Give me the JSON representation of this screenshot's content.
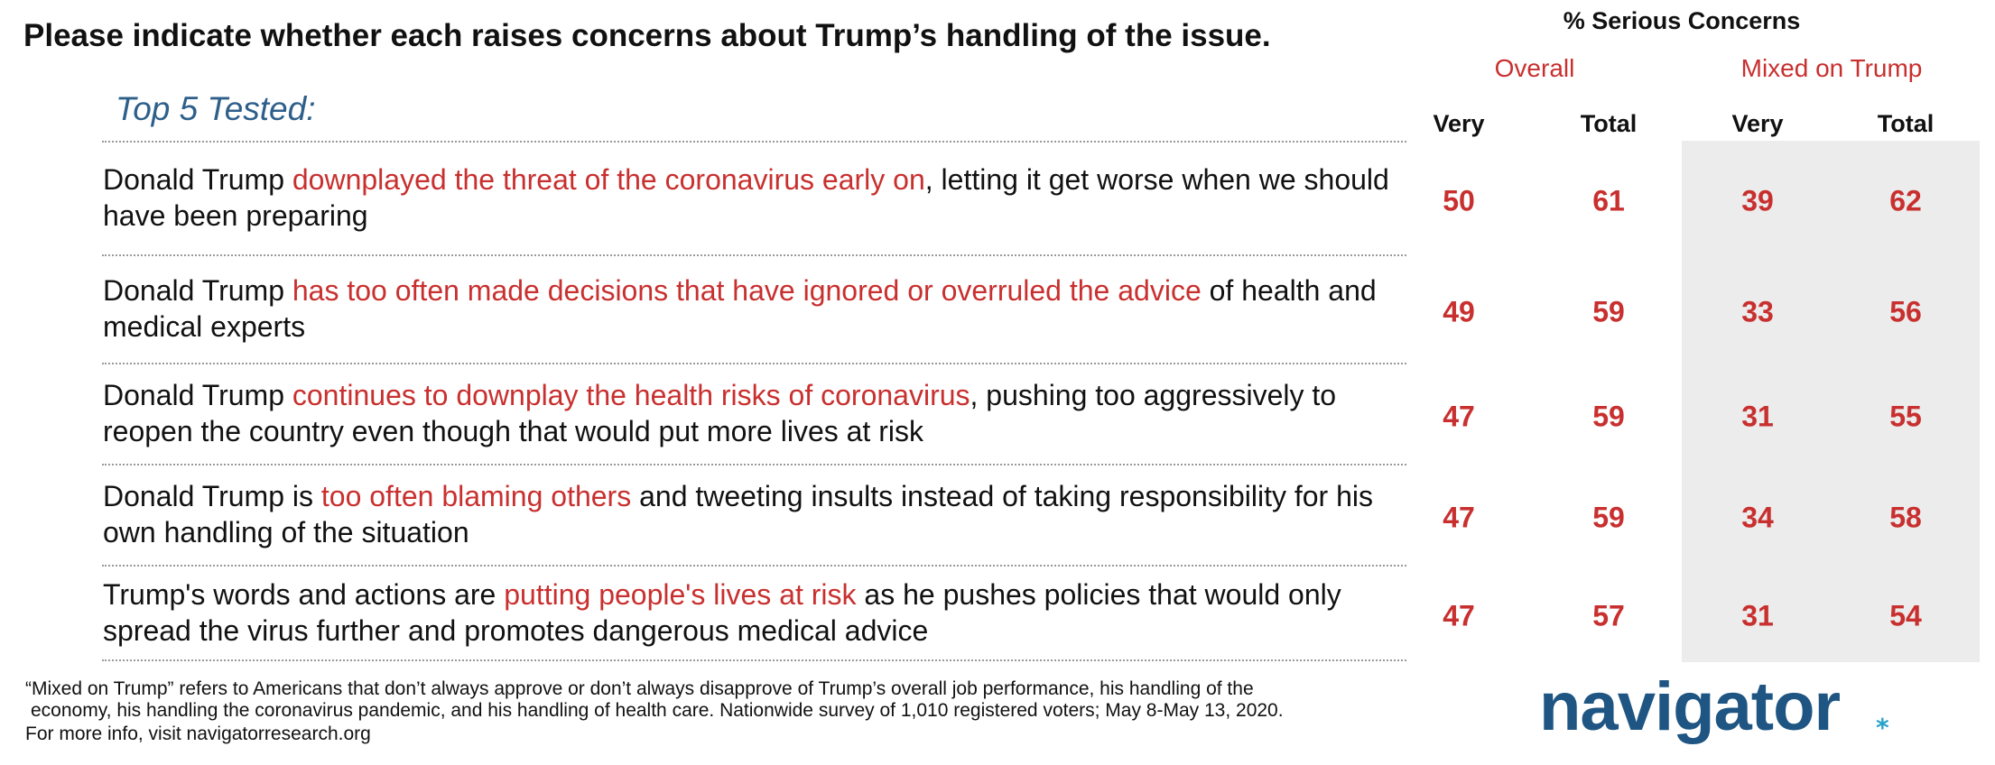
{
  "title": "Please indicate whether each raises concerns about Trump’s handling of the issue.",
  "header": {
    "title": "% Serious Concerns",
    "groups": [
      "Overall",
      "Mixed on Trump"
    ],
    "columns": [
      "Very",
      "Total",
      "Very",
      "Total"
    ]
  },
  "subtitle": "Top 5 Tested:",
  "rows": [
    {
      "text": [
        "Donald Trump ",
        "downplayed the threat of the coronavirus early on",
        ", letting it get worse when we should have been preparing"
      ],
      "values": [
        50,
        61,
        39,
        62
      ]
    },
    {
      "text": [
        "Donald Trump ",
        "has too often made decisions that have ignored or overruled the advice",
        " of health and medical experts"
      ],
      "values": [
        49,
        59,
        33,
        56
      ]
    },
    {
      "text": [
        "Donald Trump ",
        "continues to downplay the health risks of coronavirus",
        ", pushing too aggressively to reopen the country even though that would put more lives at risk"
      ],
      "values": [
        47,
        59,
        31,
        55
      ]
    },
    {
      "text": [
        "Donald Trump is ",
        "too often blaming others",
        " and tweeting insults instead of taking responsibility for his own handling of the situation"
      ],
      "values": [
        47,
        59,
        34,
        58
      ]
    },
    {
      "text": [
        "Trump's words and actions are ",
        "putting people's lives at risk",
        " as he pushes policies that would only spread the virus further and promotes dangerous medical advice"
      ],
      "values": [
        47,
        57,
        31,
        54
      ]
    }
  ],
  "footnote": [
    "“Mixed on Trump” refers to Americans that don’t always approve or don’t always disapprove of Trump’s overall job performance, his handling of the",
    "economy, his handling the coronavirus pandemic, and his handling of health care. Nationwide survey of 1,010 registered voters; May 8-May 13, 2020.",
    "For more info, visit navigatorresearch.org"
  ],
  "logo": "navigator"
}
